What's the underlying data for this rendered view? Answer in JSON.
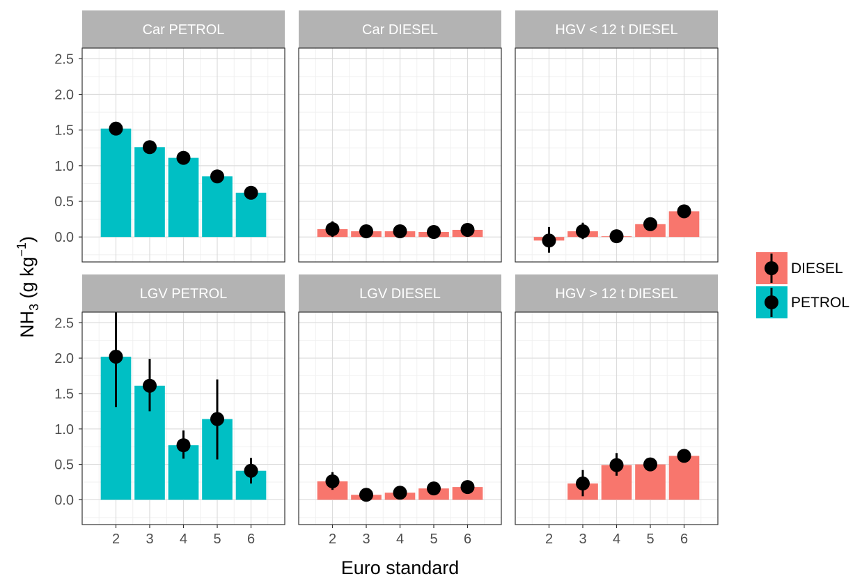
{
  "chart_data": {
    "type": "bar",
    "x_label": "Euro standard",
    "y_label_main": "NH",
    "y_label_sub": "3",
    "y_label_unit_open": " (g kg",
    "y_label_unit_sup": "−1",
    "y_label_unit_close": ")",
    "categories": [
      "2",
      "3",
      "4",
      "5",
      "6"
    ],
    "ylim": [
      -0.35,
      2.65
    ],
    "y_ticks": [
      "0.0",
      "0.5",
      "1.0",
      "1.5",
      "2.0",
      "2.5"
    ],
    "grid": true,
    "legend_position": "right",
    "legend": [
      {
        "label": "DIESEL",
        "color": "#F8766D"
      },
      {
        "label": "PETROL",
        "color": "#00BFC4"
      }
    ],
    "panels": [
      {
        "title": "Car PETROL",
        "fuel": "PETROL",
        "bars": [
          1.52,
          1.26,
          1.11,
          0.85,
          0.62
        ],
        "points": [
          1.52,
          1.26,
          1.11,
          0.85,
          0.62
        ],
        "err_low": [
          1.52,
          1.26,
          1.11,
          0.85,
          0.62
        ],
        "err_high": [
          1.52,
          1.26,
          1.11,
          0.85,
          0.62
        ]
      },
      {
        "title": "Car DIESEL",
        "fuel": "DIESEL",
        "bars": [
          0.11,
          0.08,
          0.08,
          0.07,
          0.1
        ],
        "points": [
          0.11,
          0.08,
          0.08,
          0.07,
          0.1
        ],
        "err_low": [
          0.0,
          0.08,
          0.08,
          0.07,
          0.1
        ],
        "err_high": [
          0.22,
          0.08,
          0.08,
          0.07,
          0.1
        ]
      },
      {
        "title": "HGV < 12 t DIESEL",
        "fuel": "DIESEL",
        "bars": [
          -0.05,
          0.08,
          0.01,
          0.18,
          0.36
        ],
        "points": [
          -0.05,
          0.08,
          0.01,
          0.18,
          0.36
        ],
        "err_low": [
          -0.22,
          -0.03,
          -0.06,
          0.18,
          0.36
        ],
        "err_high": [
          0.14,
          0.2,
          0.1,
          0.18,
          0.36
        ]
      },
      {
        "title": "LGV PETROL",
        "fuel": "PETROL",
        "bars": [
          2.02,
          1.61,
          0.77,
          1.14,
          0.41
        ],
        "points": [
          2.02,
          1.61,
          0.77,
          1.14,
          0.41
        ],
        "err_low": [
          1.31,
          1.25,
          0.58,
          0.57,
          0.23
        ],
        "err_high": [
          2.65,
          1.99,
          0.98,
          1.7,
          0.59
        ]
      },
      {
        "title": "LGV DIESEL",
        "fuel": "DIESEL",
        "bars": [
          0.26,
          0.07,
          0.1,
          0.16,
          0.18
        ],
        "points": [
          0.26,
          0.07,
          0.1,
          0.16,
          0.18
        ],
        "err_low": [
          0.14,
          0.07,
          0.1,
          0.16,
          0.18
        ],
        "err_high": [
          0.39,
          0.07,
          0.1,
          0.16,
          0.18
        ]
      },
      {
        "title": "HGV > 12 t DIESEL",
        "fuel": "DIESEL",
        "bars": [
          null,
          0.23,
          0.49,
          0.5,
          0.62
        ],
        "points": [
          null,
          0.23,
          0.49,
          0.5,
          0.62
        ],
        "err_low": [
          null,
          0.05,
          0.34,
          0.5,
          0.62
        ],
        "err_high": [
          null,
          0.42,
          0.66,
          0.5,
          0.62
        ]
      }
    ]
  }
}
